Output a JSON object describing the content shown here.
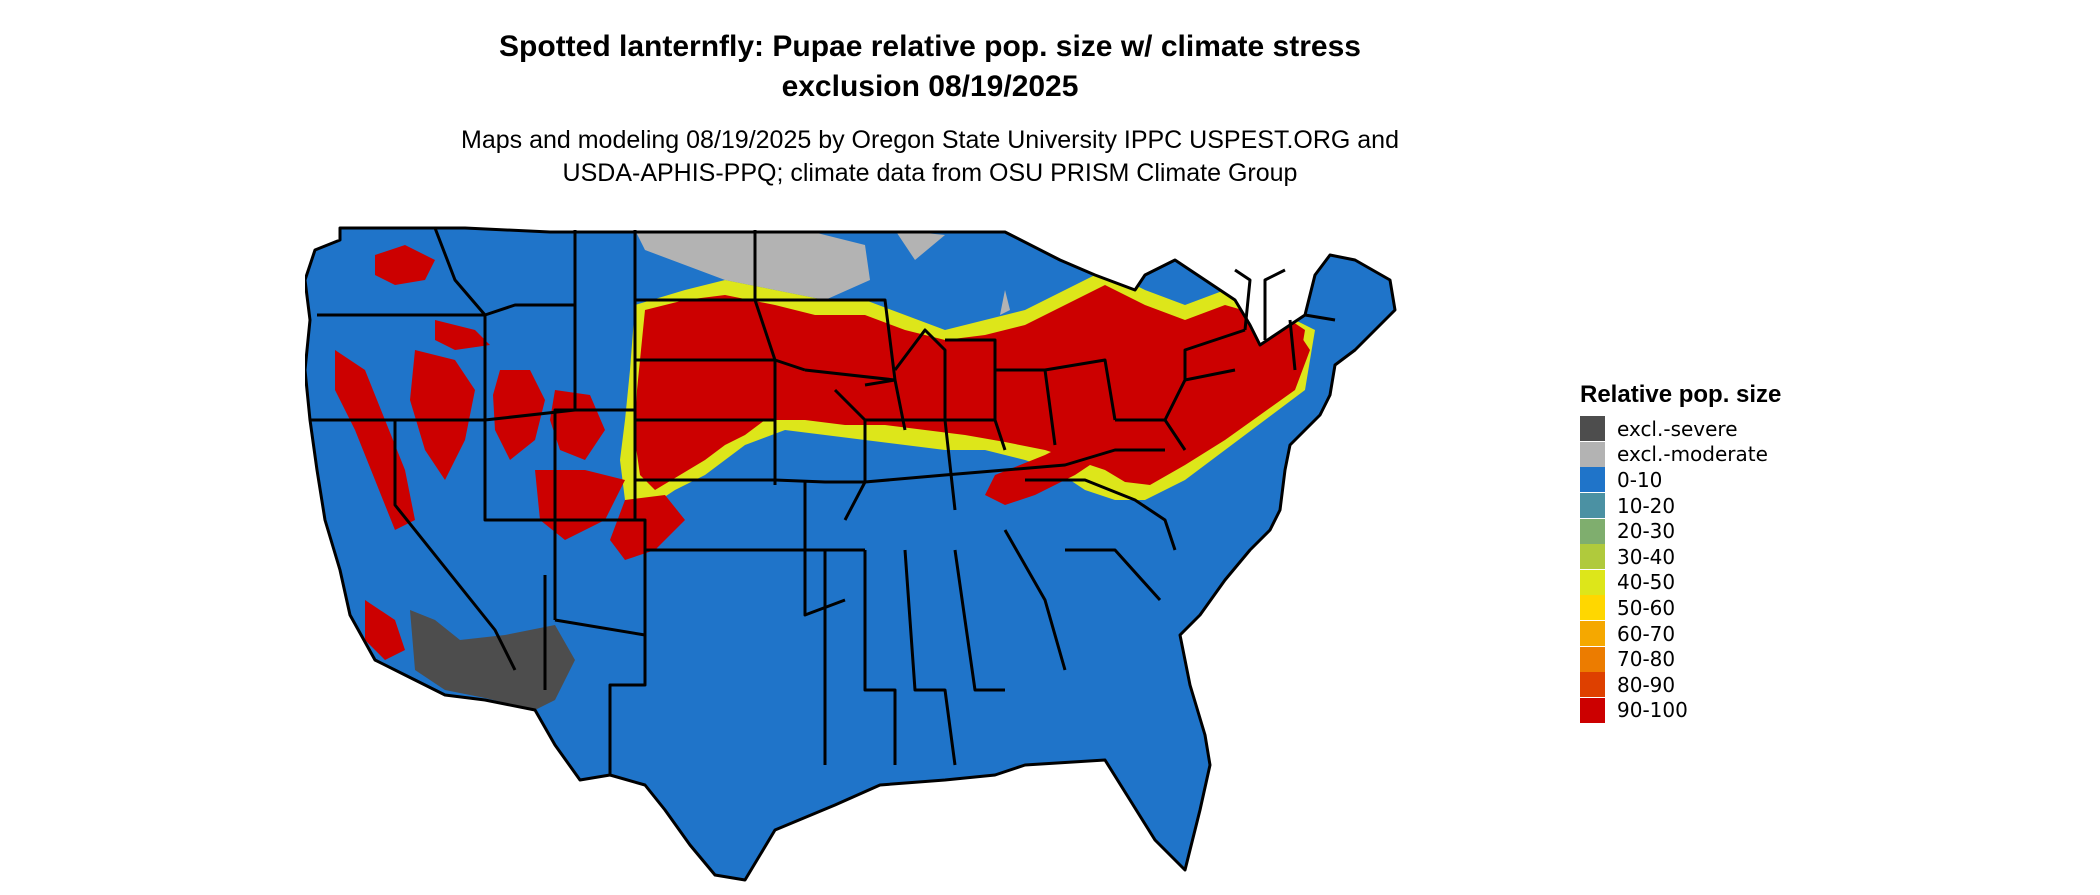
{
  "title_line1": "Spotted lanternfly: Pupae relative pop. size w/ climate stress",
  "title_line2": "exclusion 08/19/2025",
  "subtitle_line1": "Maps and modeling 08/19/2025 by Oregon State University IPPC USPEST.ORG and",
  "subtitle_line2": "USDA-APHIS-PPQ; climate data from OSU PRISM Climate Group",
  "legend": {
    "title": "Relative pop. size",
    "items": [
      {
        "label": "excl.-severe",
        "color": "#4d4d4d"
      },
      {
        "label": "excl.-moderate",
        "color": "#b3b3b3"
      },
      {
        "label": "0-10",
        "color": "#1f74c9"
      },
      {
        "label": "10-20",
        "color": "#4b91a3"
      },
      {
        "label": "20-30",
        "color": "#7fae6e"
      },
      {
        "label": "30-40",
        "color": "#b0ca3c"
      },
      {
        "label": "40-50",
        "color": "#dde61a"
      },
      {
        "label": "50-60",
        "color": "#ffd700"
      },
      {
        "label": "60-70",
        "color": "#f5a800"
      },
      {
        "label": "70-80",
        "color": "#ec7c00"
      },
      {
        "label": "80-90",
        "color": "#de4000"
      },
      {
        "label": "90-100",
        "color": "#cc0000"
      }
    ]
  }
}
